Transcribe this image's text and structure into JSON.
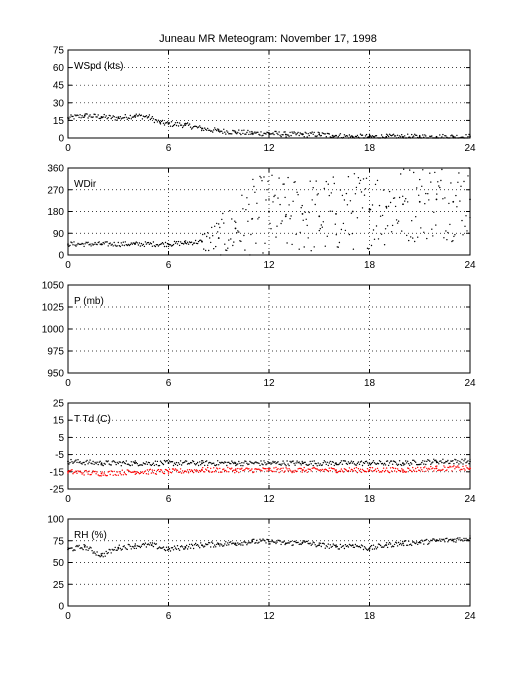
{
  "figure": {
    "title": "Juneau MR Meteogram:   November 17, 1998"
  },
  "chart_data": [
    {
      "type": "scatter",
      "label": "WSpd (kts)",
      "xlim": [
        0,
        24
      ],
      "xticks": [
        0,
        6,
        12,
        18,
        24
      ],
      "ylim": [
        0,
        75
      ],
      "yticks": [
        0,
        15,
        30,
        45,
        60,
        75
      ],
      "grid": true,
      "series": [
        {
          "color": "#000000",
          "x": [
            0,
            1,
            2,
            3,
            4,
            4.8,
            5.5,
            6,
            7,
            8,
            9,
            10,
            11,
            12,
            13,
            14,
            15,
            15.8,
            16,
            17,
            18,
            19,
            20,
            21,
            22,
            23,
            24
          ],
          "y": [
            17,
            19,
            18,
            17,
            19,
            18,
            13,
            12,
            11,
            8,
            6,
            5,
            4,
            4,
            3,
            3,
            3,
            2,
            2,
            1,
            1,
            1,
            1,
            1,
            1,
            1,
            1
          ]
        }
      ]
    },
    {
      "type": "scatter",
      "label": "WDir",
      "xlim": [
        0,
        24
      ],
      "xticks": [
        0,
        6,
        12,
        18,
        24
      ],
      "ylim": [
        0,
        360
      ],
      "yticks": [
        0,
        90,
        180,
        270,
        360
      ],
      "grid": true,
      "series": [
        {
          "color": "#000000",
          "x": [
            0,
            2,
            4,
            6,
            7,
            8,
            9,
            10,
            11,
            12,
            13,
            14,
            15,
            16,
            17,
            18,
            19,
            20,
            21,
            22,
            23,
            24
          ],
          "y": [
            45,
            45,
            45,
            45,
            50,
            55,
            70,
            110,
            150,
            180,
            160,
            170,
            160,
            170,
            180,
            190,
            200,
            210,
            220,
            230,
            220,
            230
          ]
        }
      ]
    },
    {
      "type": "scatter",
      "label": "P (mb)",
      "xlim": [
        0,
        24
      ],
      "xticks": [
        0,
        6,
        12,
        18,
        24
      ],
      "ylim": [
        950,
        1050
      ],
      "yticks": [
        950,
        975,
        1000,
        1025,
        1050
      ],
      "grid": true,
      "series": []
    },
    {
      "type": "scatter",
      "label": "T Td (C)",
      "xlim": [
        0,
        24
      ],
      "xticks": [
        0,
        6,
        12,
        18,
        24
      ],
      "ylim": [
        -25,
        25
      ],
      "yticks": [
        -25,
        -15,
        -5,
        5,
        15,
        25
      ],
      "grid": true,
      "series": [
        {
          "color": "#000000",
          "x": [
            0,
            2,
            4,
            6,
            8,
            10,
            12,
            14,
            16,
            18,
            20,
            22,
            24
          ],
          "y": [
            -9,
            -10,
            -10,
            -10,
            -10,
            -10,
            -10,
            -10,
            -10,
            -10,
            -10,
            -9,
            -9
          ]
        },
        {
          "color": "#ff0000",
          "x": [
            0,
            2,
            4,
            6,
            8,
            10,
            12,
            14,
            16,
            18,
            20,
            22,
            24
          ],
          "y": [
            -15,
            -16,
            -15,
            -15,
            -14,
            -14,
            -14,
            -14,
            -14,
            -14,
            -14,
            -13,
            -13
          ]
        }
      ]
    },
    {
      "type": "scatter",
      "label": "RH (%)",
      "xlim": [
        0,
        24
      ],
      "xticks": [
        0,
        6,
        12,
        18,
        24
      ],
      "ylim": [
        0,
        100
      ],
      "yticks": [
        0,
        25,
        50,
        75,
        100
      ],
      "grid": true,
      "series": [
        {
          "color": "#000000",
          "x": [
            0,
            1,
            2,
            3,
            4,
            5,
            6,
            7,
            8,
            9,
            10,
            11,
            12,
            13,
            14,
            15,
            16,
            17,
            18,
            19,
            20,
            21,
            22,
            23,
            24
          ],
          "y": [
            65,
            68,
            58,
            67,
            69,
            70,
            65,
            68,
            70,
            71,
            72,
            74,
            74,
            72,
            73,
            70,
            68,
            70,
            66,
            70,
            72,
            73,
            75,
            76,
            78
          ]
        }
      ]
    }
  ]
}
